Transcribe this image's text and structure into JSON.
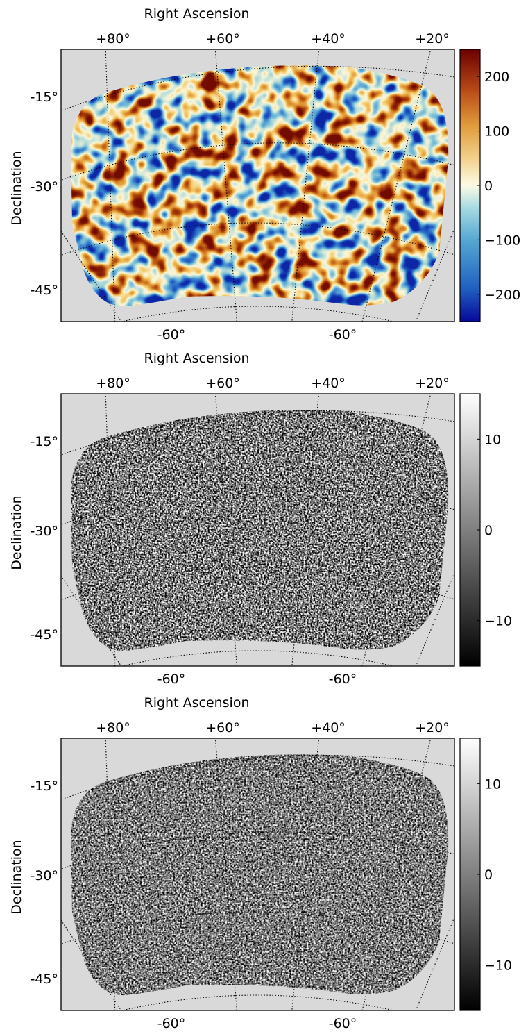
{
  "chart_data": [
    {
      "type": "heatmap",
      "xlabel": "Right Ascension",
      "ylabel": "Declination",
      "top_ticks": [
        "+80°",
        "+60°",
        "+40°",
        "+20°"
      ],
      "bottom_ticks": [
        "-60°",
        "-60°"
      ],
      "left_ticks": [
        "-15°",
        "-30°",
        "-45°"
      ],
      "colormap": "blue-white-red",
      "colorbar": {
        "range": [
          -250,
          250
        ],
        "ticks": [
          200,
          100,
          0,
          -100,
          -200
        ],
        "tick_labels": [
          "200",
          "100",
          "0",
          "−100",
          "−200"
        ]
      }
    },
    {
      "type": "heatmap",
      "xlabel": "Right Ascension",
      "ylabel": "Declination",
      "top_ticks": [
        "+80°",
        "+60°",
        "+40°",
        "+20°"
      ],
      "bottom_ticks": [
        "-60°",
        "-60°"
      ],
      "left_ticks": [
        "-15°",
        "-30°",
        "-45°"
      ],
      "colormap": "gray",
      "colorbar": {
        "range": [
          -15,
          15
        ],
        "ticks": [
          10,
          0,
          -10
        ],
        "tick_labels": [
          "10",
          "0",
          "−10"
        ]
      }
    },
    {
      "type": "heatmap",
      "xlabel": "Right Ascension",
      "ylabel": "Declination",
      "top_ticks": [
        "+80°",
        "+60°",
        "+40°",
        "+20°"
      ],
      "bottom_ticks": [
        "-60°",
        "-60°"
      ],
      "left_ticks": [
        "-15°",
        "-30°",
        "-45°"
      ],
      "colormap": "gray",
      "colorbar": {
        "range": [
          -15,
          15
        ],
        "ticks": [
          10,
          0,
          -10
        ],
        "tick_labels": [
          "10",
          "0",
          "−10"
        ]
      }
    }
  ],
  "colors": {
    "background": "#d9d9d9",
    "frame": "#000000",
    "diverging_low": "#08089a",
    "diverging_mid": "#fdfbe6",
    "diverging_high": "#6b0000"
  }
}
